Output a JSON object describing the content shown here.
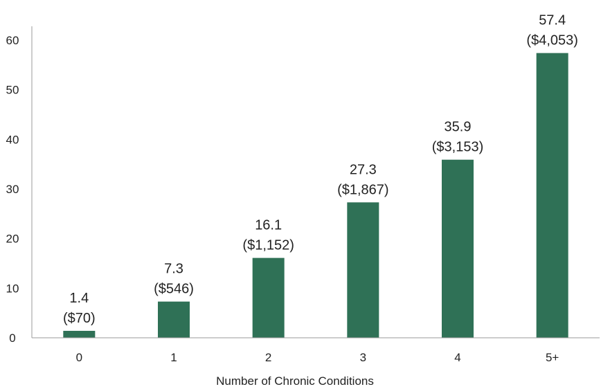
{
  "chart_data": {
    "type": "bar",
    "title": "",
    "xlabel": "Number of Chronic Conditions",
    "ylabel": "",
    "categories": [
      "0",
      "1",
      "2",
      "3",
      "4",
      "5+"
    ],
    "values": [
      1.4,
      7.3,
      16.1,
      27.3,
      35.9,
      57.4
    ],
    "value_labels": [
      "1.4",
      "7.3",
      "16.1",
      "27.3",
      "35.9",
      "57.4"
    ],
    "cost_labels": [
      "($70)",
      "($546)",
      "($1,152)",
      "($1,867)",
      "($3,153)",
      "($4,053)"
    ],
    "ylim": [
      0,
      60
    ],
    "yticks": [
      0,
      10,
      20,
      30,
      40,
      50,
      60
    ],
    "grid": false,
    "legend": "none",
    "colors": {
      "bar": "#2f7156",
      "axis": "#999999",
      "text": "#222222"
    }
  }
}
